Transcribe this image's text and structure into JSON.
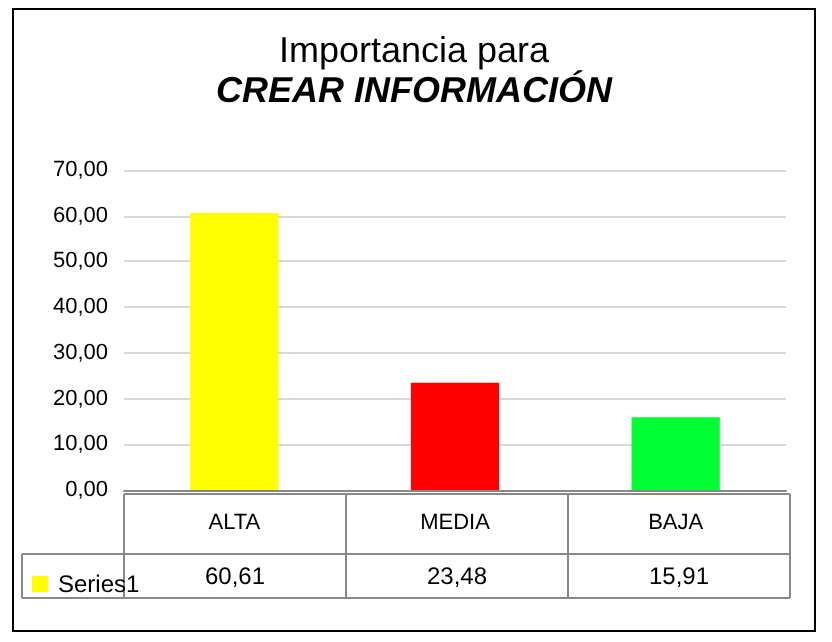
{
  "chart_data": {
    "type": "bar",
    "title": "Importancia para",
    "subtitle": "CREAR INFORMACIÓN",
    "categories": [
      "ALTA",
      "MEDIA",
      "BAJA"
    ],
    "series": [
      {
        "name": "Series1",
        "colors": [
          "#ffff00",
          "#ff0000",
          "#00ff33"
        ],
        "values": [
          60.61,
          23.48,
          15.91
        ],
        "value_labels": [
          "60,61",
          "23,48",
          "15,91"
        ]
      }
    ],
    "ylim": [
      0,
      70
    ],
    "yticks": [
      {
        "value": 0,
        "label": "0,00"
      },
      {
        "value": 10,
        "label": "10,00"
      },
      {
        "value": 20,
        "label": "20,00"
      },
      {
        "value": 30,
        "label": "30,00"
      },
      {
        "value": 40,
        "label": "40,00"
      },
      {
        "value": 50,
        "label": "50,00"
      },
      {
        "value": 60,
        "label": "60,00"
      },
      {
        "value": 70,
        "label": "70,00"
      }
    ],
    "grid": "y",
    "legend": "bottom left"
  }
}
